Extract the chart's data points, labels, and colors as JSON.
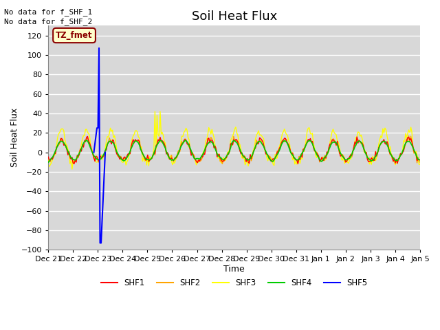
{
  "title": "Soil Heat Flux",
  "xlabel": "Time",
  "ylabel": "Soil Heat Flux",
  "ylim": [
    -100,
    130
  ],
  "yticks": [
    -100,
    -80,
    -60,
    -40,
    -20,
    0,
    20,
    40,
    60,
    80,
    100,
    120
  ],
  "plot_bg_color": "#d8d8d8",
  "fig_bg_color": "#ffffff",
  "annotations": [
    "No data for f_SHF_1",
    "No data for f_SHF_2"
  ],
  "tz_label": "TZ_fmet",
  "legend_entries": [
    "SHF1",
    "SHF2",
    "SHF3",
    "SHF4",
    "SHF5"
  ],
  "series_colors": {
    "SHF1": "#ff0000",
    "SHF2": "#ffa500",
    "SHF3": "#ffff00",
    "SHF4": "#00cc00",
    "SHF5": "#0000ff"
  },
  "x_tick_labels": [
    "Dec 21",
    "Dec 22",
    "Dec 23",
    "Dec 24",
    "Dec 25",
    "Dec 26",
    "Dec 27",
    "Dec 28",
    "Dec 29",
    "Dec 30",
    "Dec 31",
    "Jan 1",
    "Jan 2",
    "Jan 3",
    "Jan 4",
    "Jan 5"
  ],
  "title_fontsize": 13,
  "axis_label_fontsize": 9,
  "tick_fontsize": 8
}
